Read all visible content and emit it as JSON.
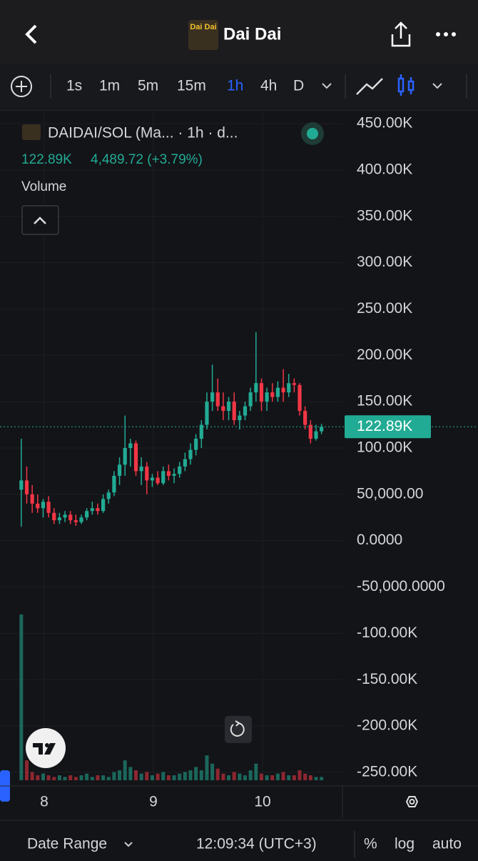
{
  "header": {
    "title": "Dai Dai"
  },
  "toolbar": {
    "intervals": [
      "1s",
      "1m",
      "5m",
      "15m",
      "1h",
      "4h",
      "D"
    ],
    "active": "1h"
  },
  "chart_data": {
    "type": "candlestick",
    "symbol_label": "DAIDAI/SOL (Ma... · 1h · d...",
    "last_label": "122.89K",
    "last_value": 122890,
    "change_label": "4,489.72 (+3.79%)",
    "volume_label": "Volume",
    "up_color": "#22ab94",
    "down_color": "#f23645",
    "x": [
      7.79,
      7.84,
      7.89,
      7.94,
      7.99,
      8.04,
      8.09,
      8.14,
      8.19,
      8.24,
      8.29,
      8.34,
      8.39,
      8.44,
      8.49,
      8.54,
      8.59,
      8.64,
      8.69,
      8.74,
      8.79,
      8.84,
      8.89,
      8.94,
      8.99,
      9.04,
      9.09,
      9.14,
      9.19,
      9.24,
      9.29,
      9.34,
      9.39,
      9.44,
      9.49,
      9.54,
      9.59,
      9.64,
      9.69,
      9.74,
      9.79,
      9.84,
      9.89,
      9.94,
      9.99,
      10.04,
      10.09,
      10.14,
      10.19,
      10.24,
      10.29,
      10.34,
      10.39,
      10.44,
      10.49,
      10.54
    ],
    "open": [
      55000,
      65000,
      50000,
      40000,
      35000,
      42000,
      30000,
      22000,
      25000,
      28000,
      22000,
      20000,
      25000,
      32000,
      35000,
      32000,
      45000,
      52000,
      70000,
      82000,
      100000,
      105000,
      75000,
      80000,
      65000,
      68000,
      62000,
      75000,
      70000,
      72000,
      80000,
      88000,
      98000,
      110000,
      125000,
      150000,
      160000,
      145000,
      140000,
      150000,
      130000,
      135000,
      145000,
      160000,
      170000,
      150000,
      160000,
      155000,
      165000,
      160000,
      170000,
      168000,
      140000,
      125000,
      110000,
      118000
    ],
    "high": [
      110000,
      80000,
      60000,
      50000,
      45000,
      48000,
      35000,
      30000,
      32000,
      32000,
      28000,
      28000,
      35000,
      42000,
      40000,
      50000,
      55000,
      75000,
      90000,
      135000,
      110000,
      108000,
      90000,
      85000,
      72000,
      75000,
      80000,
      82000,
      78000,
      85000,
      95000,
      105000,
      115000,
      130000,
      160000,
      190000,
      175000,
      160000,
      155000,
      160000,
      140000,
      150000,
      165000,
      225000,
      175000,
      165000,
      170000,
      172000,
      185000,
      180000,
      175000,
      170000,
      145000,
      130000,
      125000,
      126000
    ],
    "low": [
      15000,
      40000,
      30000,
      30000,
      25000,
      25000,
      18000,
      18000,
      20000,
      18000,
      16000,
      18000,
      22000,
      28000,
      28000,
      30000,
      40000,
      48000,
      60000,
      70000,
      80000,
      70000,
      60000,
      50000,
      58000,
      60000,
      60000,
      65000,
      62000,
      68000,
      75000,
      82000,
      92000,
      100000,
      120000,
      140000,
      140000,
      130000,
      130000,
      125000,
      120000,
      130000,
      140000,
      150000,
      140000,
      140000,
      150000,
      150000,
      150000,
      155000,
      160000,
      135000,
      120000,
      105000,
      108000,
      115000
    ],
    "close": [
      65000,
      50000,
      40000,
      35000,
      42000,
      30000,
      22000,
      25000,
      28000,
      22000,
      20000,
      25000,
      32000,
      35000,
      32000,
      45000,
      52000,
      70000,
      82000,
      100000,
      105000,
      75000,
      80000,
      65000,
      68000,
      62000,
      75000,
      70000,
      72000,
      80000,
      88000,
      98000,
      110000,
      125000,
      150000,
      160000,
      145000,
      140000,
      150000,
      130000,
      135000,
      145000,
      160000,
      170000,
      150000,
      160000,
      155000,
      165000,
      160000,
      170000,
      168000,
      140000,
      125000,
      110000,
      118000,
      122890
    ],
    "volume": [
      100,
      12,
      5,
      3,
      4,
      3,
      2,
      3,
      2,
      3,
      2,
      3,
      4,
      2,
      3,
      3,
      2,
      5,
      6,
      12,
      8,
      6,
      4,
      5,
      3,
      4,
      5,
      3,
      3,
      4,
      5,
      6,
      8,
      6,
      15,
      10,
      7,
      4,
      3,
      5,
      4,
      3,
      6,
      10,
      4,
      3,
      3,
      4,
      5,
      3,
      3,
      6,
      4,
      3,
      2,
      2
    ],
    "xlim": [
      7.595,
      10.732
    ],
    "xticks": [
      8,
      9,
      10
    ],
    "ylim": [
      -264700,
      463900
    ],
    "yticks": [
      {
        "value": 450000,
        "label": "450.00K"
      },
      {
        "value": 400000,
        "label": "400.00K"
      },
      {
        "value": 350000,
        "label": "350.00K"
      },
      {
        "value": 300000,
        "label": "300.00K"
      },
      {
        "value": 250000,
        "label": "250.00K"
      },
      {
        "value": 200000,
        "label": "200.00K"
      },
      {
        "value": 150000,
        "label": "150.00K"
      },
      {
        "value": 100000,
        "label": "100.00K"
      },
      {
        "value": 50000,
        "label": "50,000.00"
      },
      {
        "value": 0,
        "label": "0.0000"
      },
      {
        "value": -50000,
        "label": "-50,000.0000"
      },
      {
        "value": -100000,
        "label": "-100.00K"
      },
      {
        "value": -150000,
        "label": "-150.00K"
      },
      {
        "value": -200000,
        "label": "-200.00K"
      },
      {
        "value": -250000,
        "label": "-250.00K"
      }
    ],
    "grid": true
  },
  "footer": {
    "range": "Date Range",
    "time": "12:09:34 (UTC+3)",
    "percent": "%",
    "log": "log",
    "auto": "auto"
  }
}
